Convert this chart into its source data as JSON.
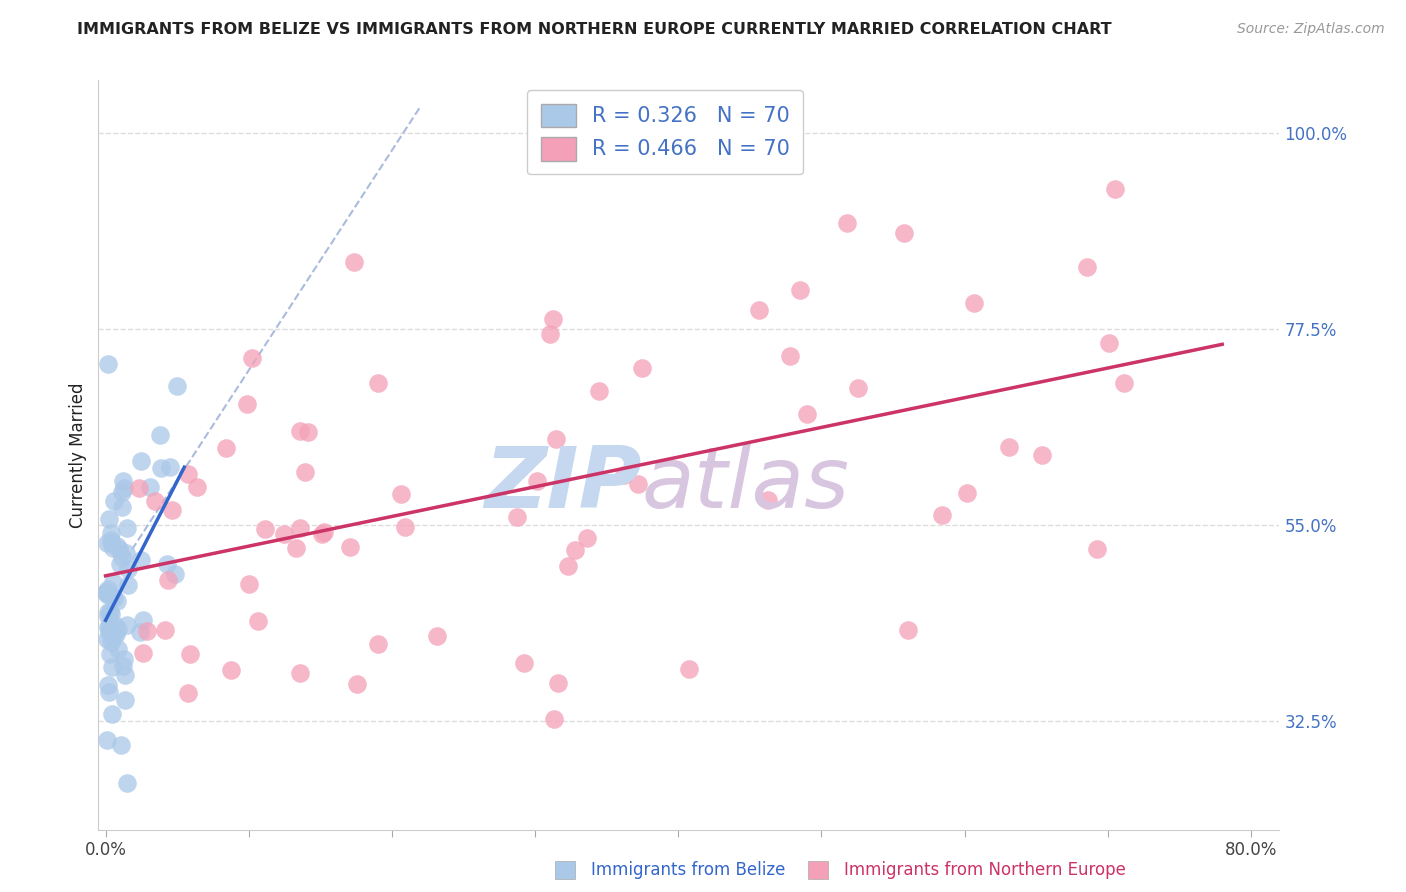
{
  "title": "IMMIGRANTS FROM BELIZE VS IMMIGRANTS FROM NORTHERN EUROPE CURRENTLY MARRIED CORRELATION CHART",
  "source": "Source: ZipAtlas.com",
  "xlabel_belize": "Immigrants from Belize",
  "xlabel_northern": "Immigrants from Northern Europe",
  "ylabel": "Currently Married",
  "xlim_min": -0.005,
  "xlim_max": 0.82,
  "ylim_min": 0.2,
  "ylim_max": 1.06,
  "ytick_vals": [
    0.325,
    0.55,
    0.775,
    1.0
  ],
  "ytick_labels": [
    "32.5%",
    "55.0%",
    "77.5%",
    "100.0%"
  ],
  "xtick_start": 0.0,
  "xtick_end": 0.8,
  "xtick_n": 9,
  "belize_R": 0.326,
  "belize_N": 70,
  "northern_R": 0.466,
  "northern_N": 70,
  "belize_scatter_color": "#aac8e8",
  "northern_scatter_color": "#f4a0b8",
  "belize_line_color": "#3366cc",
  "northern_line_color": "#cc3366",
  "ref_line_color": "#aabbdd",
  "grid_color": "#dddddd",
  "watermark_text": "ZIPatlas",
  "watermark_color_zip": "#c5d8f0",
  "watermark_color_atlas": "#d8c5e0",
  "title_color": "#222222",
  "source_color": "#999999",
  "ytick_color": "#4472c4",
  "xtick_color": "#444444",
  "legend_border_color": "#cccccc"
}
